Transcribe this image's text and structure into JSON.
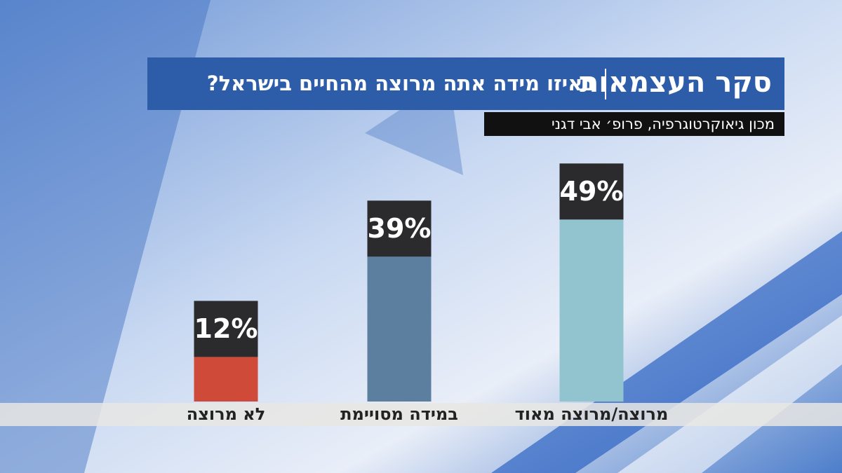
{
  "chart_data": {
    "type": "bar",
    "title": "סקר העצמאות",
    "subtitle": "באיזו מידה אתה מרוצה מהחיים בישראל?",
    "source": "מכון גיאוקרטוגרפיה, פרופ׳ אבי דגני",
    "categories": [
      "לא מרוצה",
      "במידה מסויימת",
      "מרוצה/מרוצה מאוד"
    ],
    "values": [
      12,
      39,
      49
    ],
    "value_labels": [
      "12%",
      "39%",
      "49%"
    ],
    "colors": [
      "#d04a3a",
      "#5c7fa0",
      "#92c4d0"
    ]
  }
}
